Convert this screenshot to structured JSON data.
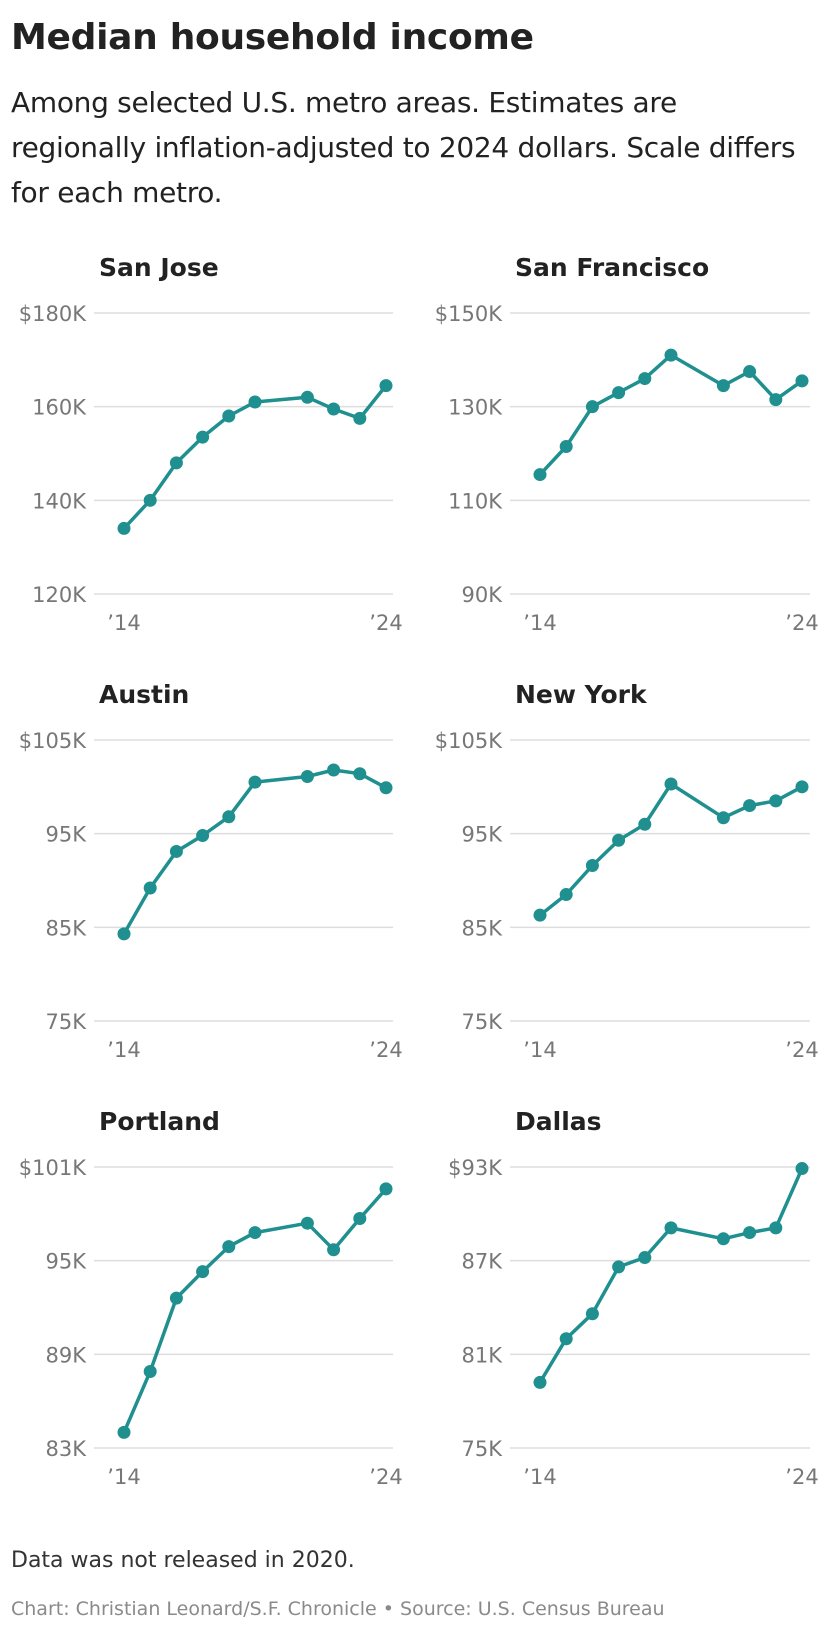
{
  "header": {
    "title": "Median household income",
    "subtitle": "Among selected U.S. metro areas. Estimates are regionally inflation-adjusted to 2024 dollars. Scale differs for each metro."
  },
  "footer": {
    "note": "Data was not released in 2020.",
    "credit": "Chart: Christian Leonard/S.F. Chronicle",
    "separator": "•",
    "source": "Source: U.S. Census Bureau"
  },
  "colors": {
    "line": "#1f8f8f",
    "grid": "#dddddd",
    "tick_text": "#777777",
    "title_text": "#222222"
  },
  "chart_data": [
    {
      "type": "line",
      "title": "San Jose",
      "x": [
        2014,
        2015,
        2016,
        2017,
        2018,
        2019,
        2021,
        2022,
        2023,
        2024
      ],
      "values": [
        134000,
        140000,
        148000,
        153500,
        158000,
        161000,
        162000,
        159500,
        157500,
        164500
      ],
      "ylim": [
        120000,
        180000
      ],
      "yticks": [
        120000,
        140000,
        160000,
        180000
      ],
      "ytick_labels": [
        "120K",
        "140K",
        "160K",
        "$180K"
      ],
      "xtick_labels": [
        "’14",
        "’24"
      ],
      "grid": true
    },
    {
      "type": "line",
      "title": "San Francisco",
      "x": [
        2014,
        2015,
        2016,
        2017,
        2018,
        2019,
        2021,
        2022,
        2023,
        2024
      ],
      "values": [
        115500,
        121500,
        130000,
        133000,
        136000,
        141000,
        134500,
        137500,
        131500,
        135500
      ],
      "ylim": [
        90000,
        150000
      ],
      "yticks": [
        90000,
        110000,
        130000,
        150000
      ],
      "ytick_labels": [
        "90K",
        "110K",
        "130K",
        "$150K"
      ],
      "xtick_labels": [
        "’14",
        "’24"
      ],
      "grid": true
    },
    {
      "type": "line",
      "title": "Austin",
      "x": [
        2014,
        2015,
        2016,
        2017,
        2018,
        2019,
        2021,
        2022,
        2023,
        2024
      ],
      "values": [
        84300,
        89200,
        93100,
        94800,
        96800,
        100500,
        101100,
        101800,
        101400,
        99900
      ],
      "ylim": [
        75000,
        105000
      ],
      "yticks": [
        75000,
        85000,
        95000,
        105000
      ],
      "ytick_labels": [
        "75K",
        "85K",
        "95K",
        "$105K"
      ],
      "xtick_labels": [
        "’14",
        "’24"
      ],
      "grid": true
    },
    {
      "type": "line",
      "title": "New York",
      "x": [
        2014,
        2015,
        2016,
        2017,
        2018,
        2019,
        2021,
        2022,
        2023,
        2024
      ],
      "values": [
        86300,
        88500,
        91600,
        94300,
        96000,
        100300,
        96700,
        98000,
        98500,
        100000
      ],
      "ylim": [
        75000,
        105000
      ],
      "yticks": [
        75000,
        85000,
        95000,
        105000
      ],
      "ytick_labels": [
        "75K",
        "85K",
        "95K",
        "$105K"
      ],
      "xtick_labels": [
        "’14",
        "’24"
      ],
      "grid": true
    },
    {
      "type": "line",
      "title": "Portland",
      "x": [
        2014,
        2015,
        2016,
        2017,
        2018,
        2019,
        2021,
        2022,
        2023,
        2024
      ],
      "values": [
        84000,
        87900,
        92600,
        94300,
        95900,
        96800,
        97400,
        95700,
        97700,
        99600
      ],
      "ylim": [
        83000,
        101000
      ],
      "yticks": [
        83000,
        89000,
        95000,
        101000
      ],
      "ytick_labels": [
        "83K",
        "89K",
        "95K",
        "$101K"
      ],
      "xtick_labels": [
        "’14",
        "’24"
      ],
      "grid": true
    },
    {
      "type": "line",
      "title": "Dallas",
      "x": [
        2014,
        2015,
        2016,
        2017,
        2018,
        2019,
        2021,
        2022,
        2023,
        2024
      ],
      "values": [
        79200,
        82000,
        83600,
        86600,
        87200,
        89100,
        88400,
        88800,
        89100,
        92900
      ],
      "ylim": [
        75000,
        93000
      ],
      "yticks": [
        75000,
        81000,
        87000,
        93000
      ],
      "ytick_labels": [
        "75K",
        "81K",
        "87K",
        "$93K"
      ],
      "xtick_labels": [
        "’14",
        "’24"
      ],
      "grid": true
    }
  ]
}
